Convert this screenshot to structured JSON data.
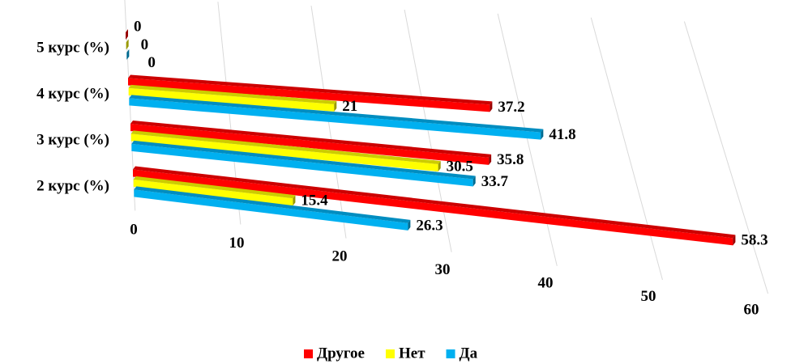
{
  "chart_data": {
    "type": "bar3d",
    "categories": [
      "5 курс (%)",
      "4 курс (%)",
      "3 курс (%)",
      "2 курс (%)"
    ],
    "series": [
      {
        "name": "Другое",
        "color": "#ff0000",
        "values": [
          0,
          37.2,
          35.8,
          58.3
        ]
      },
      {
        "name": "Нет",
        "color": "#ffff00",
        "values": [
          0,
          21,
          30.5,
          15.4
        ]
      },
      {
        "name": "Да",
        "color": "#00b0f0",
        "values": [
          0,
          41.8,
          33.7,
          26.3
        ]
      }
    ],
    "xlim": [
      0,
      60
    ],
    "xticks": [
      0,
      10,
      20,
      30,
      40,
      50,
      60
    ],
    "grid": true,
    "legend": "bottom"
  }
}
